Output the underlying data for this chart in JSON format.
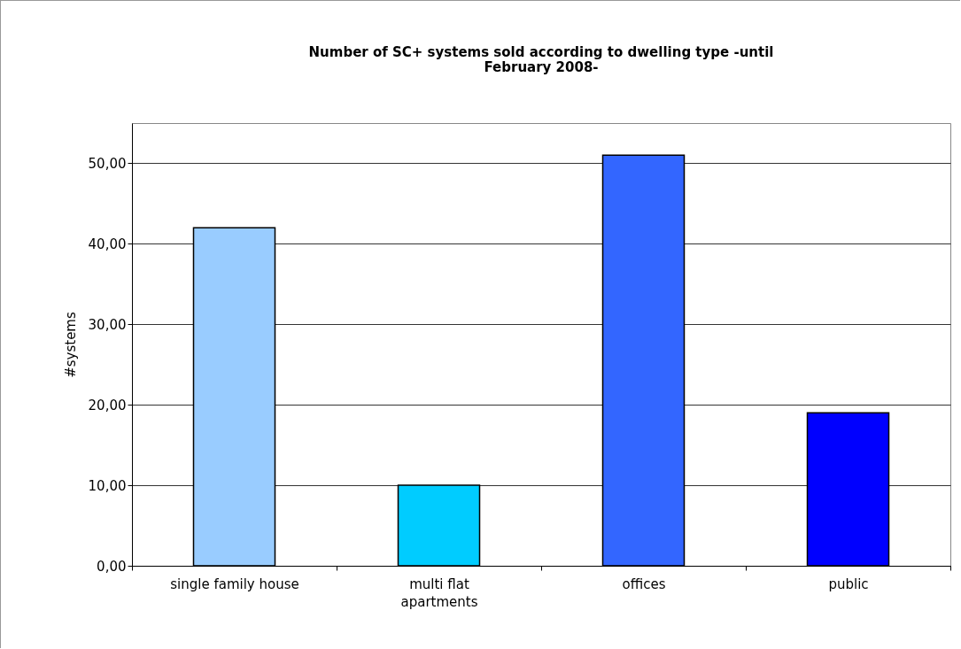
{
  "chart_data": {
    "type": "bar",
    "title": "Number of SC+ systems sold according to dwelling type -until February 2008-",
    "ylabel": "#systems",
    "categories": [
      "single family house",
      "multi flat apartments",
      "offices",
      "public"
    ],
    "values": [
      42,
      10,
      51,
      19
    ],
    "colors": [
      "#99ccff",
      "#00ccff",
      "#3366ff",
      "#0000ff"
    ],
    "ylim": [
      0,
      55
    ],
    "yticks": [
      {
        "value": 0,
        "label": "0,00"
      },
      {
        "value": 10,
        "label": "10,00"
      },
      {
        "value": 20,
        "label": "20,00"
      },
      {
        "value": 30,
        "label": "30,00"
      },
      {
        "value": 40,
        "label": "40,00"
      },
      {
        "value": 50,
        "label": "50,00"
      }
    ],
    "grid": "y"
  }
}
